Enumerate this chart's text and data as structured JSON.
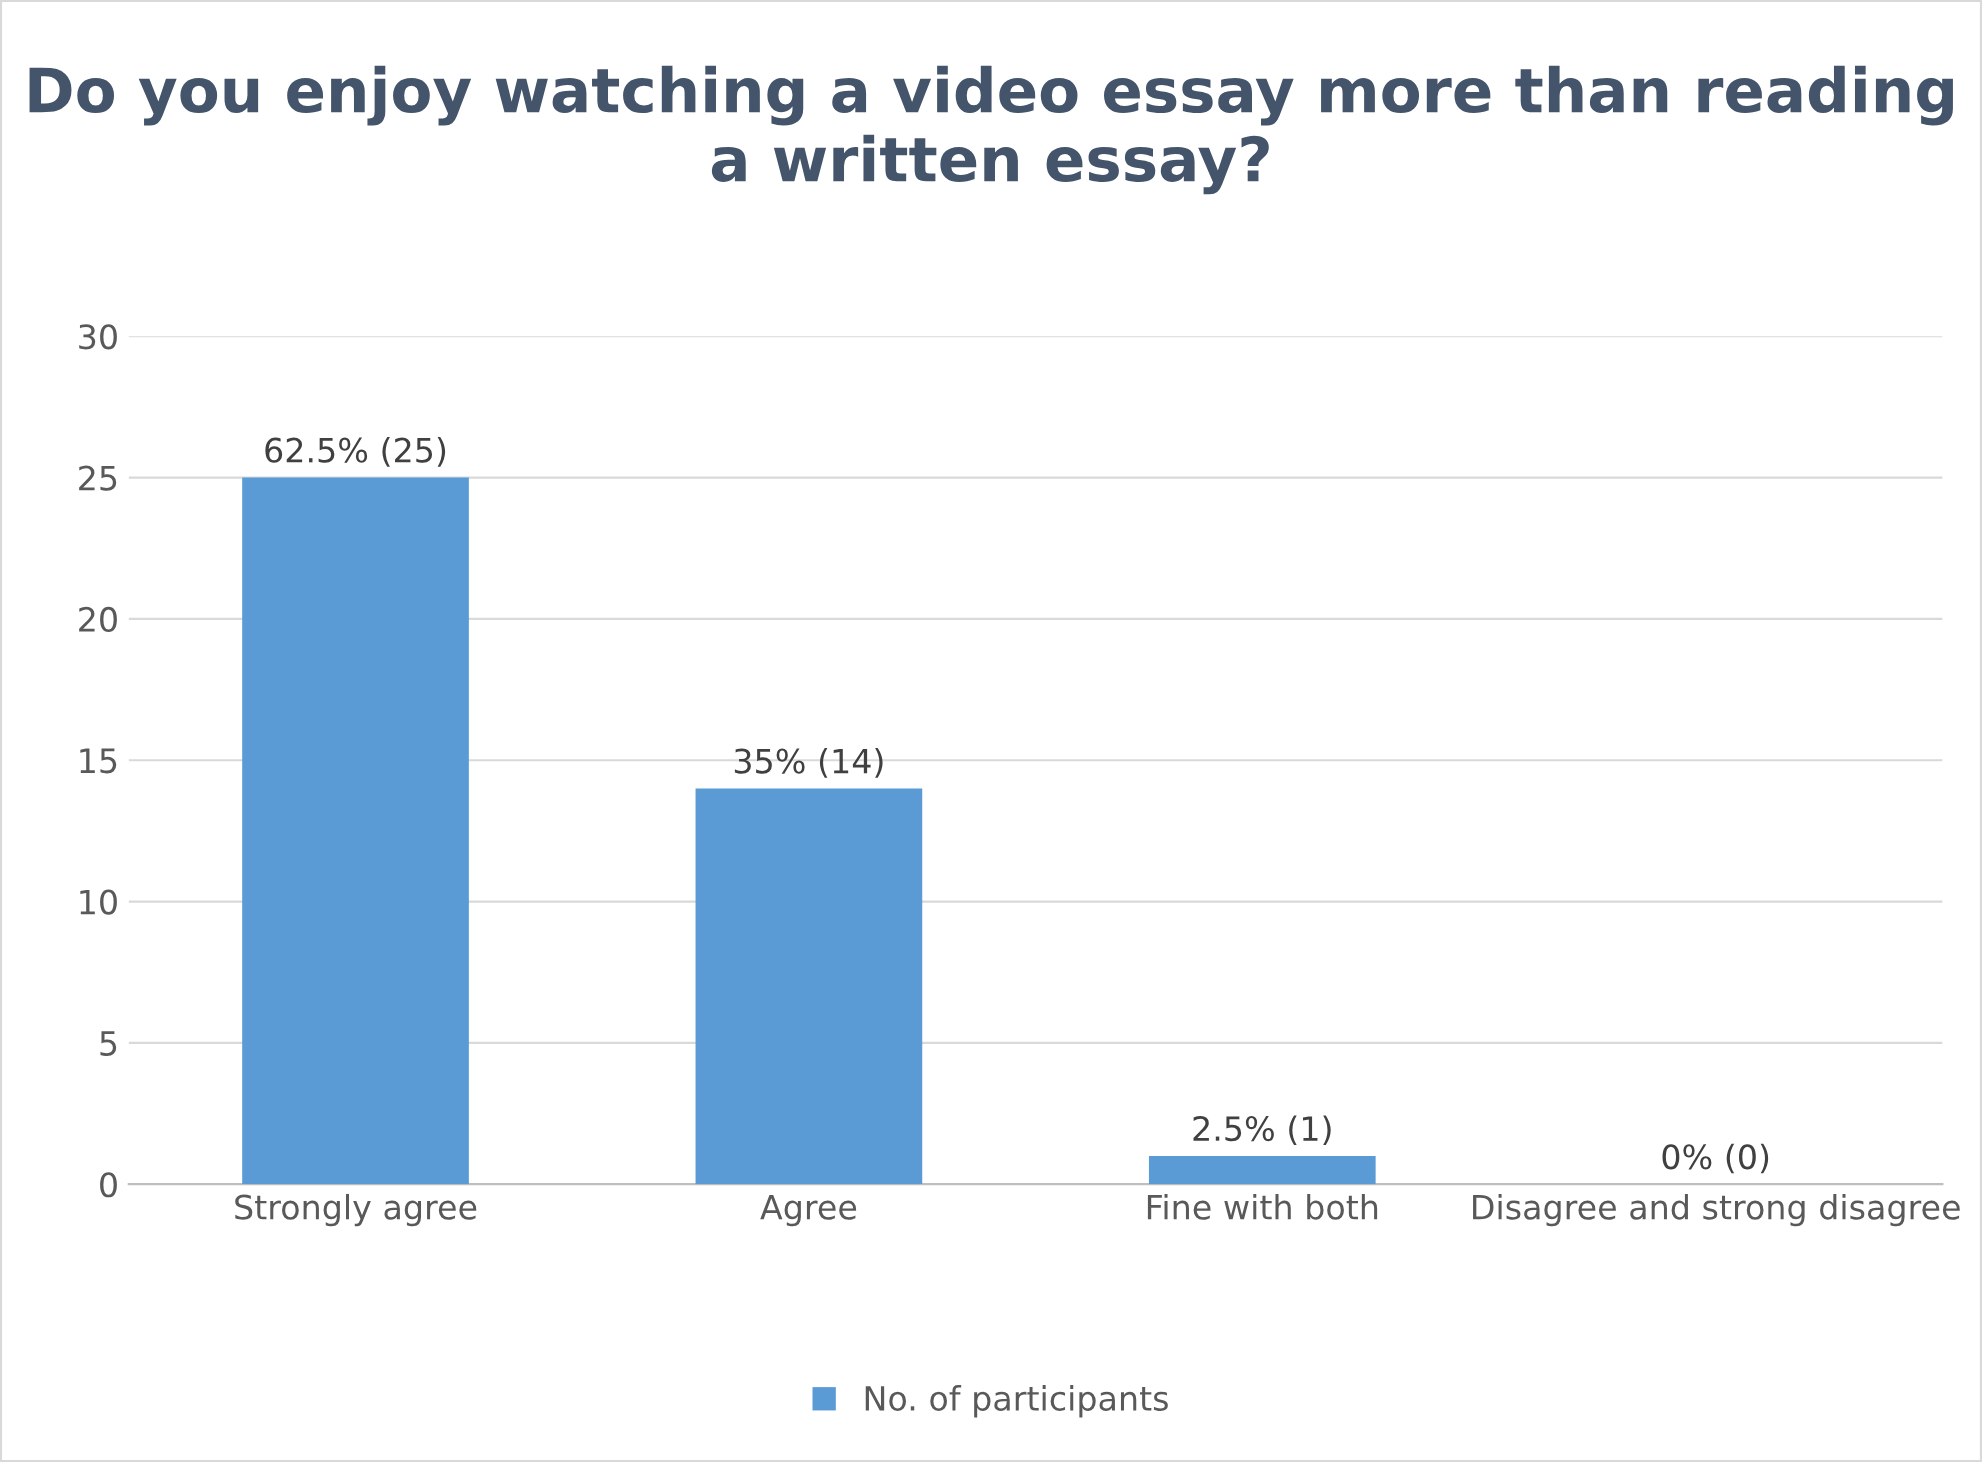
{
  "chart_data": {
    "type": "bar",
    "title": "Do you enjoy watching a video essay more than reading a written essay?",
    "categories": [
      "Strongly agree",
      "Agree",
      "Fine with both",
      "Disagree and strong disagree"
    ],
    "series": [
      {
        "name": "No. of participants",
        "color": "#5b9bd5",
        "values": [
          25,
          14,
          1,
          0
        ],
        "value_labels": [
          "62.5% (25)",
          "35% (14)",
          "2.5% (1)",
          "0% (0)"
        ]
      }
    ],
    "ylim": [
      0,
      30
    ],
    "yticks": [
      0,
      5,
      10,
      15,
      20,
      25,
      30
    ],
    "grid": "y",
    "legend": "bottom"
  }
}
